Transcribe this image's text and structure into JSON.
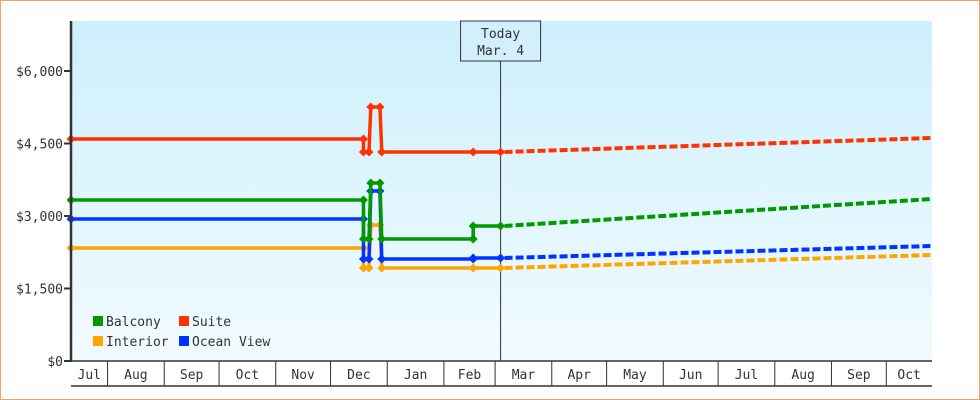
{
  "chart_data": {
    "type": "line",
    "step": true,
    "title": "",
    "xlabel": "",
    "ylabel": "",
    "ylim": [
      0,
      7034
    ],
    "y_ticks": [
      0,
      1500,
      3000,
      4500,
      6000
    ],
    "y_tick_labels": [
      "$0",
      "$1,500",
      "$3,000",
      "$4,500",
      "$6,000"
    ],
    "x_range": [
      "Jul 12",
      "Oct 26"
    ],
    "x_tick_labels": [
      "Jul",
      "Aug",
      "Sep",
      "Oct",
      "Nov",
      "Dec",
      "Jan",
      "Feb",
      "Mar",
      "Apr",
      "May",
      "Jun",
      "Jul",
      "Aug",
      "Sep",
      "Oct"
    ],
    "grid": false,
    "legend_placement": "bottom-left",
    "today": {
      "label": "Today",
      "date_label": "Mar. 4",
      "date": "Mar 4"
    },
    "series": [
      {
        "name": "Balcony",
        "color": "#009900",
        "points": [
          [
            "Jul 12",
            3331
          ],
          [
            "Dec 19",
            3331
          ],
          [
            "Dec 19",
            2524
          ],
          [
            "Dec 22",
            2524
          ],
          [
            "Dec 23",
            3683
          ],
          [
            "Dec 28",
            3683
          ],
          [
            "Dec 29",
            2524
          ],
          [
            "Feb 17",
            2524
          ],
          [
            "Feb 17",
            2793
          ],
          [
            "Mar 4",
            2793
          ]
        ],
        "forecast": [
          [
            "Mar 4",
            2793
          ],
          [
            "Oct 26",
            3352
          ]
        ]
      },
      {
        "name": "Suite",
        "color": "#ff3300",
        "points": [
          [
            "Jul 12",
            4593
          ],
          [
            "Dec 19",
            4593
          ],
          [
            "Dec 19",
            4324
          ],
          [
            "Dec 22",
            4324
          ],
          [
            "Dec 23",
            5255
          ],
          [
            "Dec 28",
            5255
          ],
          [
            "Dec 29",
            4324
          ],
          [
            "Feb 17",
            4324
          ],
          [
            "Mar 4",
            4324
          ]
        ],
        "forecast": [
          [
            "Mar 4",
            4324
          ],
          [
            "Oct 26",
            4614
          ]
        ]
      },
      {
        "name": "Interior",
        "color": "#ffa500",
        "points": [
          [
            "Jul 12",
            2338
          ],
          [
            "Dec 19",
            2338
          ],
          [
            "Dec 19",
            1924
          ],
          [
            "Dec 22",
            1924
          ],
          [
            "Dec 23",
            2814
          ],
          [
            "Dec 28",
            2814
          ],
          [
            "Dec 29",
            1924
          ],
          [
            "Feb 17",
            1924
          ],
          [
            "Mar 4",
            1924
          ]
        ],
        "forecast": [
          [
            "Mar 4",
            1924
          ],
          [
            "Oct 26",
            2193
          ]
        ]
      },
      {
        "name": "Ocean View",
        "color": "#0033ff",
        "points": [
          [
            "Jul 12",
            2938
          ],
          [
            "Dec 19",
            2938
          ],
          [
            "Dec 19",
            2110
          ],
          [
            "Dec 22",
            2110
          ],
          [
            "Dec 23",
            3517
          ],
          [
            "Dec 28",
            3517
          ],
          [
            "Dec 29",
            2110
          ],
          [
            "Feb 17",
            2110
          ],
          [
            "Feb 17",
            2131
          ],
          [
            "Mar 4",
            2131
          ]
        ],
        "forecast": [
          [
            "Mar 4",
            2131
          ],
          [
            "Oct 26",
            2379
          ]
        ]
      }
    ],
    "draw_order": [
      "Interior",
      "Ocean View",
      "Balcony",
      "Suite"
    ]
  }
}
